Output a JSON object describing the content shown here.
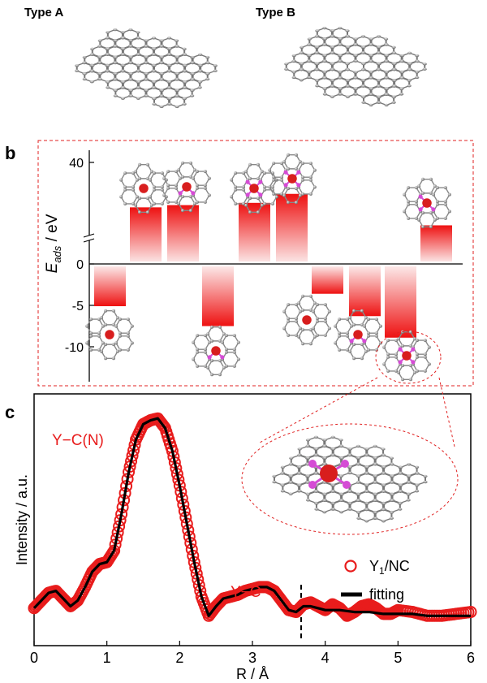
{
  "panel_a": {
    "type_a_label": "Type A",
    "type_b_label": "Type B"
  },
  "panel_labels": {
    "b": "b",
    "c": "c"
  },
  "colors": {
    "bar_red": "#ee1111",
    "frame_red": "#e02020",
    "curve_black": "#000000",
    "atom_grey": "#8a8a8a",
    "y_atom": "#d81e1e",
    "n_atom": "#d54cd5"
  },
  "chart_data": [
    {
      "type": "bar",
      "title": "",
      "ylabel": "E_ads / eV",
      "y_ticks": [
        "40",
        "0",
        "-5",
        "-10"
      ],
      "broken_axis": true,
      "categories": [
        "",
        "",
        "",
        "",
        "",
        "",
        "",
        "",
        "",
        ""
      ],
      "values": [
        -5.1,
        20,
        21,
        -7.5,
        22,
        26,
        -3.6,
        -6.3,
        -8.9,
        12
      ],
      "note": "upper segment (above the axis break) spans roughly 10 to 42 eV; lower segment spans 0 to -13 eV"
    },
    {
      "type": "line",
      "xlabel": "R / Å",
      "ylabel": "Intensity / a.u.",
      "xlim": [
        0,
        6
      ],
      "x_ticks": [
        "0",
        "1",
        "2",
        "3",
        "4",
        "5",
        "6"
      ],
      "annotations": [
        "Y−C(N)",
        "Y−C"
      ],
      "dashed_cut_x": 3.65,
      "series": [
        {
          "name": "Y1/NC",
          "name_main": "Y",
          "name_sub": "1",
          "name_rest": "/NC",
          "style": "open-circles",
          "x": [
            0.0,
            0.1,
            0.2,
            0.3,
            0.4,
            0.5,
            0.6,
            0.7,
            0.8,
            0.9,
            1.0,
            1.1,
            1.2,
            1.3,
            1.4,
            1.5,
            1.6,
            1.7,
            1.8,
            1.9,
            2.0,
            2.1,
            2.2,
            2.3,
            2.4,
            2.5,
            2.6,
            2.7,
            2.8,
            2.9,
            3.0,
            3.1,
            3.2,
            3.3,
            3.4,
            3.5,
            3.6,
            3.7,
            3.8,
            3.9,
            4.0,
            4.1,
            4.2,
            4.3,
            4.4,
            4.5,
            4.6,
            4.7,
            4.8,
            4.9,
            5.0,
            5.2,
            5.4,
            5.6,
            5.8,
            6.0
          ],
          "y": [
            0.06,
            0.1,
            0.14,
            0.15,
            0.11,
            0.07,
            0.1,
            0.17,
            0.25,
            0.29,
            0.3,
            0.36,
            0.55,
            0.77,
            0.94,
            1.02,
            1.04,
            1.05,
            1.0,
            0.88,
            0.7,
            0.5,
            0.3,
            0.12,
            0.02,
            0.07,
            0.11,
            0.12,
            0.13,
            0.15,
            0.16,
            0.17,
            0.17,
            0.15,
            0.1,
            0.05,
            0.04,
            0.08,
            0.09,
            0.07,
            0.05,
            0.08,
            0.06,
            0.02,
            0.04,
            0.07,
            0.08,
            0.06,
            0.03,
            0.03,
            0.05,
            0.04,
            0.02,
            0.02,
            0.03,
            0.04
          ]
        },
        {
          "name": "fitting",
          "style": "solid-line",
          "x": [
            0.0,
            0.1,
            0.2,
            0.3,
            0.4,
            0.5,
            0.6,
            0.7,
            0.8,
            0.9,
            1.0,
            1.1,
            1.2,
            1.3,
            1.4,
            1.5,
            1.6,
            1.7,
            1.8,
            1.9,
            2.0,
            2.1,
            2.2,
            2.3,
            2.4,
            2.5,
            2.6,
            2.7,
            2.8,
            2.9,
            3.0,
            3.1,
            3.2,
            3.3,
            3.4,
            3.5,
            3.6,
            3.7,
            3.8,
            3.9,
            4.0,
            4.2,
            4.4,
            4.6,
            4.8,
            5.0,
            5.2,
            5.4,
            5.6,
            5.8,
            6.0
          ],
          "y": [
            0.06,
            0.1,
            0.14,
            0.15,
            0.11,
            0.07,
            0.1,
            0.17,
            0.25,
            0.29,
            0.3,
            0.36,
            0.55,
            0.77,
            0.94,
            1.02,
            1.04,
            1.05,
            1.0,
            0.88,
            0.7,
            0.5,
            0.3,
            0.12,
            0.02,
            0.07,
            0.11,
            0.12,
            0.13,
            0.15,
            0.16,
            0.17,
            0.17,
            0.15,
            0.1,
            0.05,
            0.04,
            0.07,
            0.07,
            0.06,
            0.05,
            0.05,
            0.04,
            0.04,
            0.03,
            0.03,
            0.03,
            0.02,
            0.02,
            0.02,
            0.02
          ]
        }
      ]
    }
  ]
}
